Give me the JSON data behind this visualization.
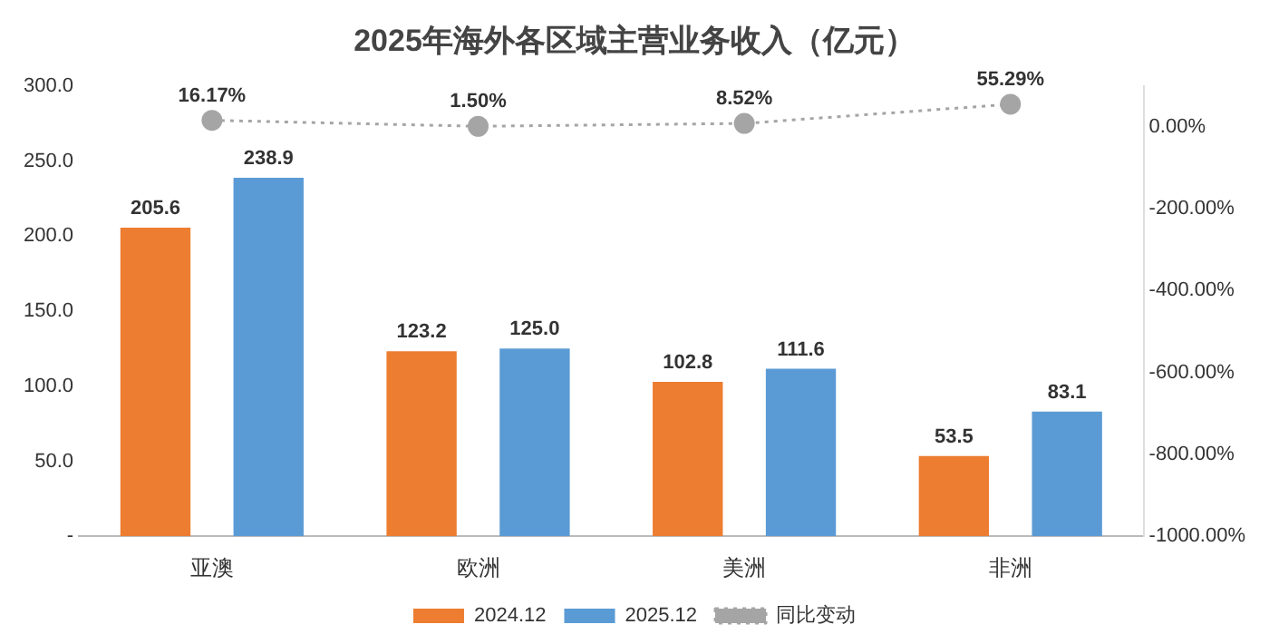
{
  "chart_data": {
    "type": "bar",
    "title": "2025年海外各区域主营业务收入（亿元）",
    "categories": [
      "亚澳",
      "欧洲",
      "美洲",
      "非洲"
    ],
    "series": [
      {
        "name": "2024.12",
        "color": "#ed7d31",
        "values": [
          205.6,
          123.2,
          102.8,
          53.5
        ],
        "value_labels": [
          "205.6",
          "123.2",
          "102.8",
          "53.5"
        ]
      },
      {
        "name": "2025.12",
        "color": "#5b9bd5",
        "values": [
          238.9,
          125.0,
          111.6,
          83.1
        ],
        "value_labels": [
          "238.9",
          "125.0",
          "111.6",
          "83.1"
        ]
      },
      {
        "name": "同比变动",
        "type": "line",
        "axis": "y2",
        "color": "#a5a5a5",
        "marker": "circle",
        "line_style": "dotted",
        "values": [
          16.17,
          1.5,
          8.52,
          55.29
        ],
        "value_labels": [
          "16.17%",
          "1.50%",
          "8.52%",
          "55.29%"
        ]
      }
    ],
    "ylim": [
      0,
      300
    ],
    "yticks": [
      {
        "value": 0,
        "label": "-"
      },
      {
        "value": 50,
        "label": "50.0"
      },
      {
        "value": 100,
        "label": "100.0"
      },
      {
        "value": 150,
        "label": "150.0"
      },
      {
        "value": 200,
        "label": "200.0"
      },
      {
        "value": 250,
        "label": "250.0"
      },
      {
        "value": 300,
        "label": "300.0"
      }
    ],
    "y2lim": [
      -1000,
      100
    ],
    "y2ticks": [
      {
        "value": -1000,
        "label": "-1000.00%"
      },
      {
        "value": -800,
        "label": "-800.00%"
      },
      {
        "value": -600,
        "label": "-600.00%"
      },
      {
        "value": -400,
        "label": "-400.00%"
      },
      {
        "value": -200,
        "label": "-200.00%"
      },
      {
        "value": 0,
        "label": "0.00%"
      }
    ],
    "grid": false,
    "legend": "bottom"
  }
}
